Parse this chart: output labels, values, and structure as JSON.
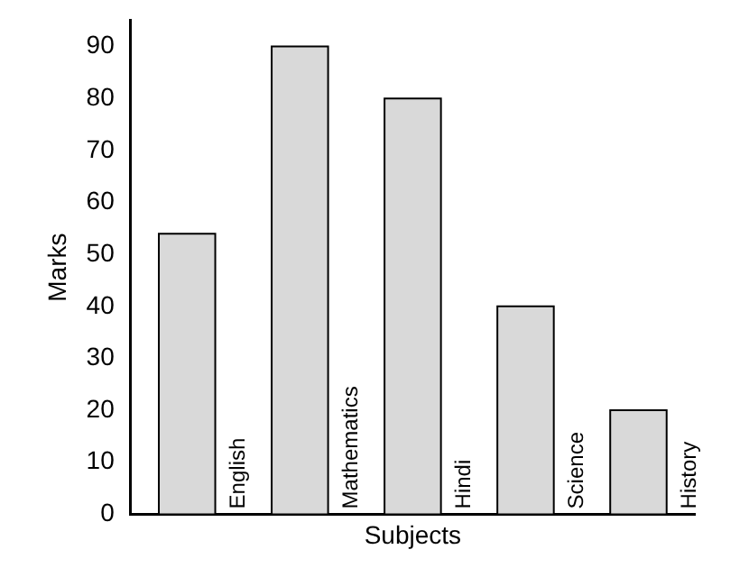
{
  "chart_data": {
    "type": "bar",
    "xlabel": "Subjects",
    "ylabel": "Marks",
    "categories": [
      "English",
      "Mathematics",
      "Hindi",
      "Science",
      "History"
    ],
    "values": [
      54,
      90,
      80,
      40,
      20
    ],
    "color": "#d9d9d9",
    "ylim": [
      0,
      95
    ],
    "yticks": [
      0,
      10,
      20,
      30,
      40,
      50,
      60,
      70,
      80,
      90
    ],
    "grid": false,
    "legend": false
  }
}
